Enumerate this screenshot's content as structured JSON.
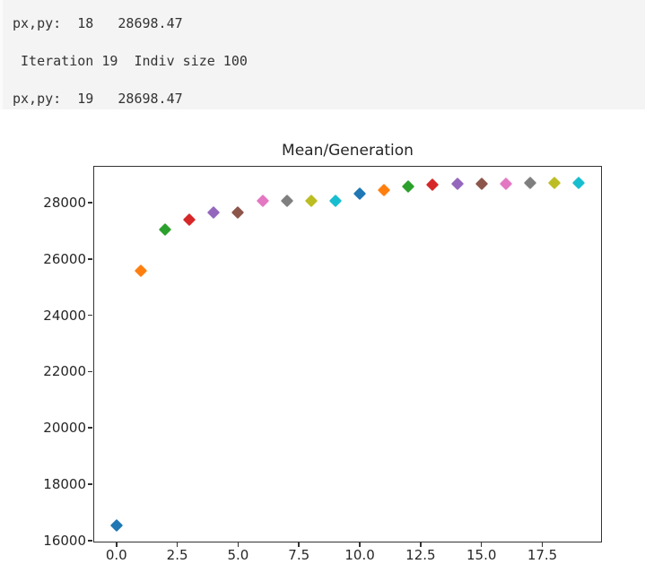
{
  "console": {
    "lines": [
      "px,py:  18   28698.47",
      " Iteration 19  Indiv size 100",
      "px,py:  19   28698.47"
    ],
    "text_color": "#333333",
    "background": "#f4f4f4"
  },
  "chart_data": {
    "type": "scatter",
    "title": "Mean/Generation",
    "xlabel": "",
    "ylabel": "",
    "marker_style": "diamond",
    "grid": false,
    "legend": null,
    "x": [
      0,
      1,
      2,
      3,
      4,
      5,
      6,
      7,
      8,
      9,
      10,
      11,
      12,
      13,
      14,
      15,
      16,
      17,
      18,
      19
    ],
    "y": [
      16540,
      25590,
      27050,
      27400,
      27650,
      27660,
      28060,
      28060,
      28080,
      28070,
      28330,
      28440,
      28560,
      28650,
      28680,
      28680,
      28685,
      28690,
      28698.47,
      28698.47
    ],
    "color_cycle": [
      "#1f77b4",
      "#ff7f0e",
      "#2ca02c",
      "#d62728",
      "#9467bd",
      "#8c564b",
      "#e377c2",
      "#7f7f7f",
      "#bcbd22",
      "#17becf"
    ],
    "xticks": [
      0,
      2.5,
      5,
      7.5,
      10,
      12.5,
      15,
      17.5
    ],
    "xtick_labels": [
      "0.0",
      "2.5",
      "5.0",
      "7.5",
      "10.0",
      "12.5",
      "15.0",
      "17.5"
    ],
    "yticks": [
      16000,
      18000,
      20000,
      22000,
      24000,
      26000,
      28000
    ],
    "ytick_labels": [
      "16000",
      "18000",
      "20000",
      "22000",
      "24000",
      "26000",
      "28000"
    ],
    "xlim": [
      -0.95,
      19.95
    ],
    "ylim": [
      15932,
      29306
    ],
    "axis_color": "#333333",
    "plot_background": "#ffffff"
  }
}
